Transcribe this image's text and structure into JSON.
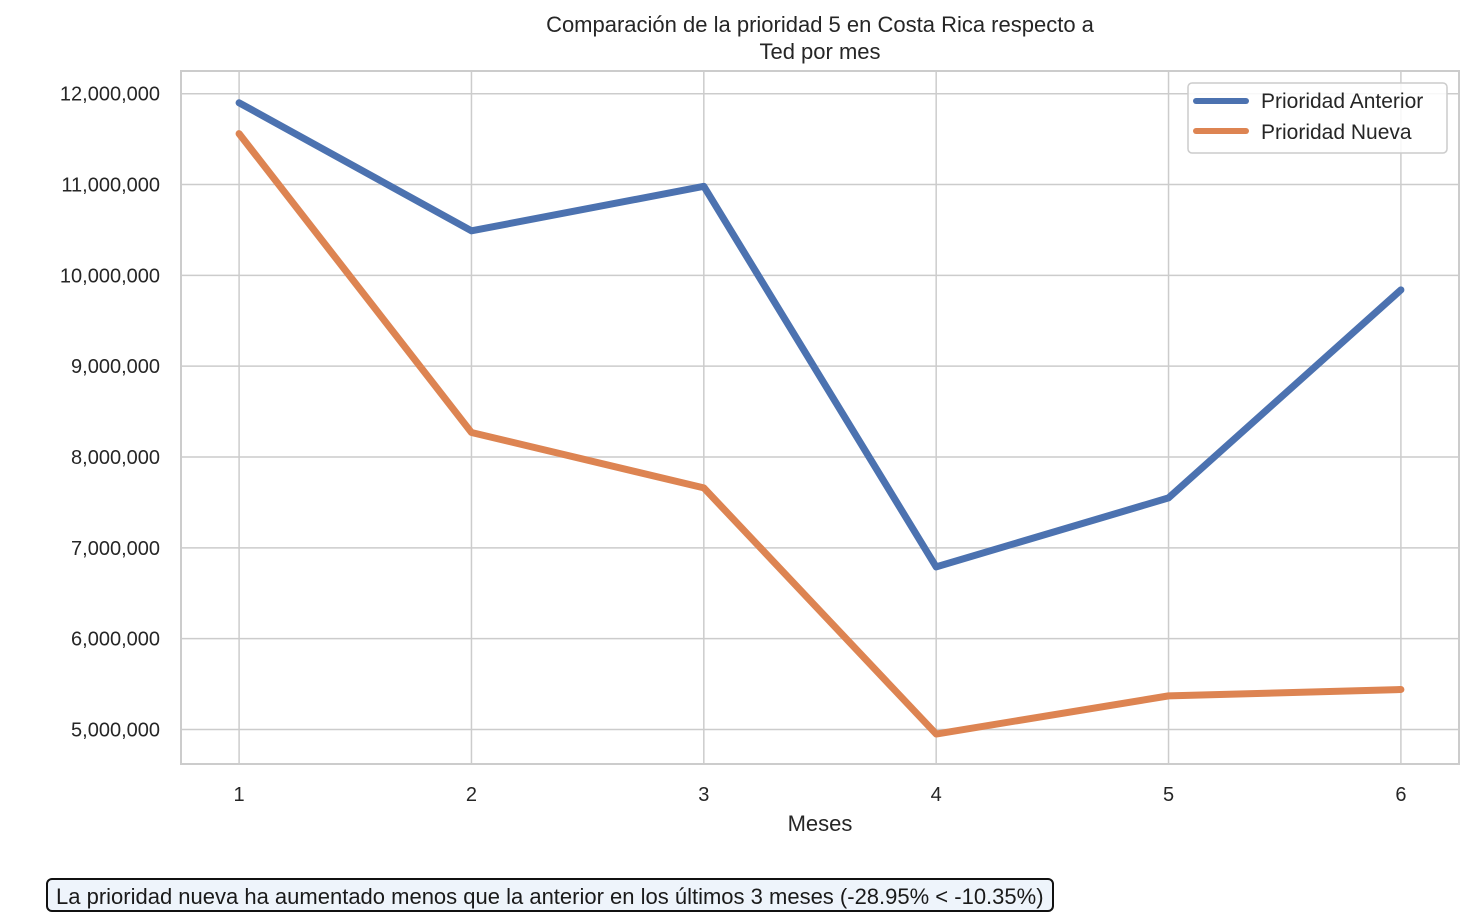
{
  "chart_data": {
    "type": "line",
    "title": "Comparación de la prioridad 5 en Costa Rica respecto a",
    "subtitle": "Ted por mes",
    "xlabel": "Meses",
    "ylabel": "",
    "x": [
      1,
      2,
      3,
      4,
      5,
      6
    ],
    "x_ticks": [
      "1",
      "2",
      "3",
      "4",
      "5",
      "6"
    ],
    "xlim": [
      0.75,
      6.25
    ],
    "ylim": [
      4620000,
      12250000
    ],
    "y_ticks": [
      5000000,
      6000000,
      7000000,
      8000000,
      9000000,
      10000000,
      11000000,
      12000000
    ],
    "y_tick_labels": [
      "5,000,000",
      "6,000,000",
      "7,000,000",
      "8,000,000",
      "9,000,000",
      "10,000,000",
      "11,000,000",
      "12,000,000"
    ],
    "grid": true,
    "legend_position": "top-right",
    "series": [
      {
        "name": "Prioridad Anterior",
        "color": "#4c72b0",
        "values": [
          11900000,
          10490000,
          10980000,
          6790000,
          7550000,
          9840000
        ]
      },
      {
        "name": "Prioridad Nueva",
        "color": "#dd8452",
        "values": [
          11560000,
          8270000,
          7660000,
          4950000,
          5370000,
          5440000
        ]
      }
    ]
  },
  "annotation": "La prioridad nueva ha aumentado menos que la anterior en los últimos 3 meses (-28.95% < -10.35%)"
}
